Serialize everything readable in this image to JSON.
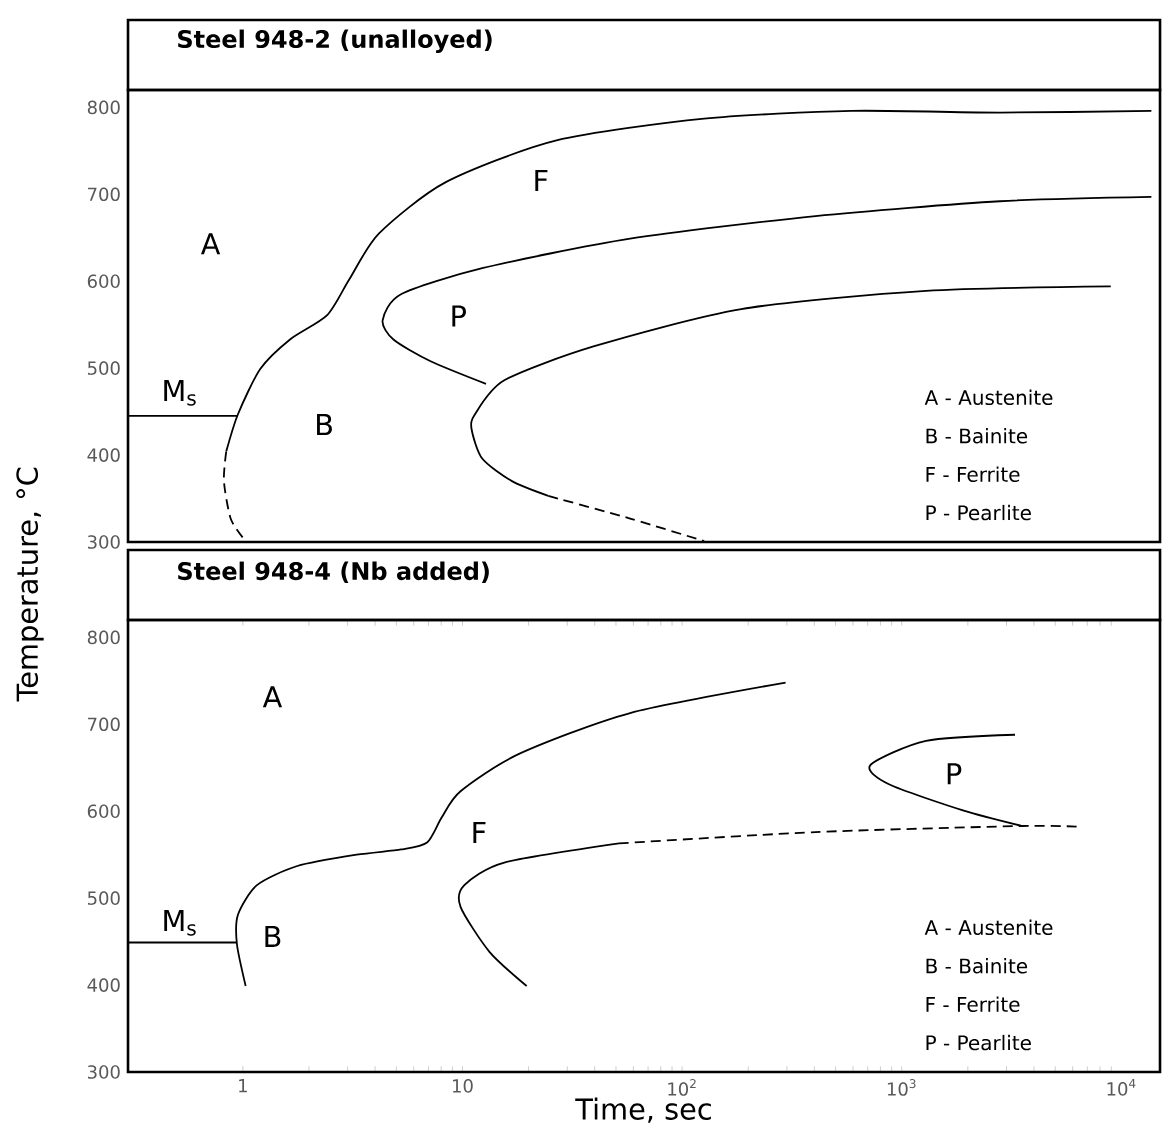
{
  "chart_data": [
    {
      "type": "line",
      "title": "Steel 948-2 (unalloyed)",
      "log": "x",
      "tick_labels": "y",
      "xlim": [
        0.3,
        15000
      ],
      "ylim": [
        300,
        820
      ],
      "yticks": [
        300,
        400,
        500,
        600,
        700,
        800
      ],
      "series": [
        {
          "color": "#000000",
          "line_style": "solid",
          "x": [
            0.84,
            0.95,
            1.2,
            1.64,
            2.42,
            3.05,
            4.17,
            8.4,
            26.8,
            126,
            590,
            2800,
            13700
          ],
          "values": [
            404,
            447,
            499,
            533,
            561,
            602,
            655,
            714,
            762,
            787,
            796,
            794,
            796
          ]
        },
        {
          "color": "#000000",
          "line_style": "dashed",
          "x": [
            0.84,
            0.82,
            0.88,
            1.0
          ],
          "values": [
            404,
            370,
            327,
            305
          ]
        },
        {
          "color": "#000000",
          "line_style": "solid",
          "x": [
            0.3,
            0.95
          ],
          "values": [
            445,
            445
          ]
        },
        {
          "color": "#000000",
          "line_style": "solid",
          "x": [
            13700,
            2800,
            405,
            58,
            12.3,
            5.25,
            4.33,
            4.85,
            7.16,
            12.8
          ],
          "values": [
            697,
            692,
            675,
            649,
            615,
            585,
            555,
            533,
            508,
            482
          ]
        },
        {
          "color": "#000000",
          "line_style": "solid",
          "x": [
            8950,
            1290,
            186,
            39.5,
            15.5,
            11.4,
            11.0,
            12.3,
            16.8,
            24.6
          ],
          "values": [
            594,
            589,
            568,
            525,
            486,
            447,
            430,
            396,
            370,
            353
          ]
        },
        {
          "color": "#000000",
          "line_style": "dashed",
          "x": [
            24.6,
            58,
            126
          ],
          "values": [
            353,
            327,
            301
          ]
        }
      ],
      "annotations": [
        "A",
        "F",
        "P",
        "B",
        "M$_{s}$",
        "A - Austenite",
        "B - Bainite",
        "F - Ferrite",
        "P - Pearlite"
      ]
    },
    {
      "type": "line",
      "title": "Steel 948-4 (Nb added)",
      "xlabel": "Time, sec",
      "ylabel": "Temperature, °C",
      "log": "x",
      "xlim": [
        0.3,
        15000
      ],
      "ylim": [
        300,
        820
      ],
      "yticks": [
        300,
        400,
        500,
        600,
        700,
        800
      ],
      "xticks": [
        1,
        10,
        {
          "value": 100,
          "label": "10$^{2}$"
        },
        {
          "value": 1000,
          "label": "10$^{3}$"
        },
        {
          "value": 10000,
          "label": "10$^{4}$"
        }
      ],
      "series": [
        {
          "color": "#000000",
          "line_style": "solid",
          "x": [
            1.03,
            0.94,
            0.95,
            1.16,
            1.77,
            3.3,
            5.26,
            6.9,
            8.05,
            9.8,
            18.1,
            58,
            296
          ],
          "values": [
            399,
            447,
            481,
            515,
            537,
            550,
            556,
            564,
            593,
            623,
            666,
            713,
            748
          ]
        },
        {
          "color": "#000000",
          "line_style": "solid",
          "x": [
            0.3,
            0.94
          ],
          "values": [
            449,
            449
          ]
        },
        {
          "color": "#000000",
          "line_style": "solid",
          "x": [
            19.6,
            13.3,
            9.8,
            10.2,
            15.5,
            51.6
          ],
          "values": [
            399,
            438,
            490,
            515,
            541,
            563
          ]
        },
        {
          "color": "#000000",
          "line_style": "dashed",
          "x": [
            51.6,
            405,
            3540,
            6580
          ],
          "values": [
            563,
            576,
            583,
            582
          ]
        },
        {
          "color": "#000000",
          "line_style": "solid",
          "x": [
            3280,
            1290,
            720,
            875,
            1900,
            3540
          ],
          "values": [
            688,
            681,
            653,
            631,
            601,
            583
          ]
        }
      ],
      "annotations": [
        "A",
        "F",
        "P",
        "B",
        "M$_{s}$",
        "A - Austenite",
        "B - Bainite",
        "F - Ferrite",
        "P - Pearlite"
      ]
    }
  ]
}
